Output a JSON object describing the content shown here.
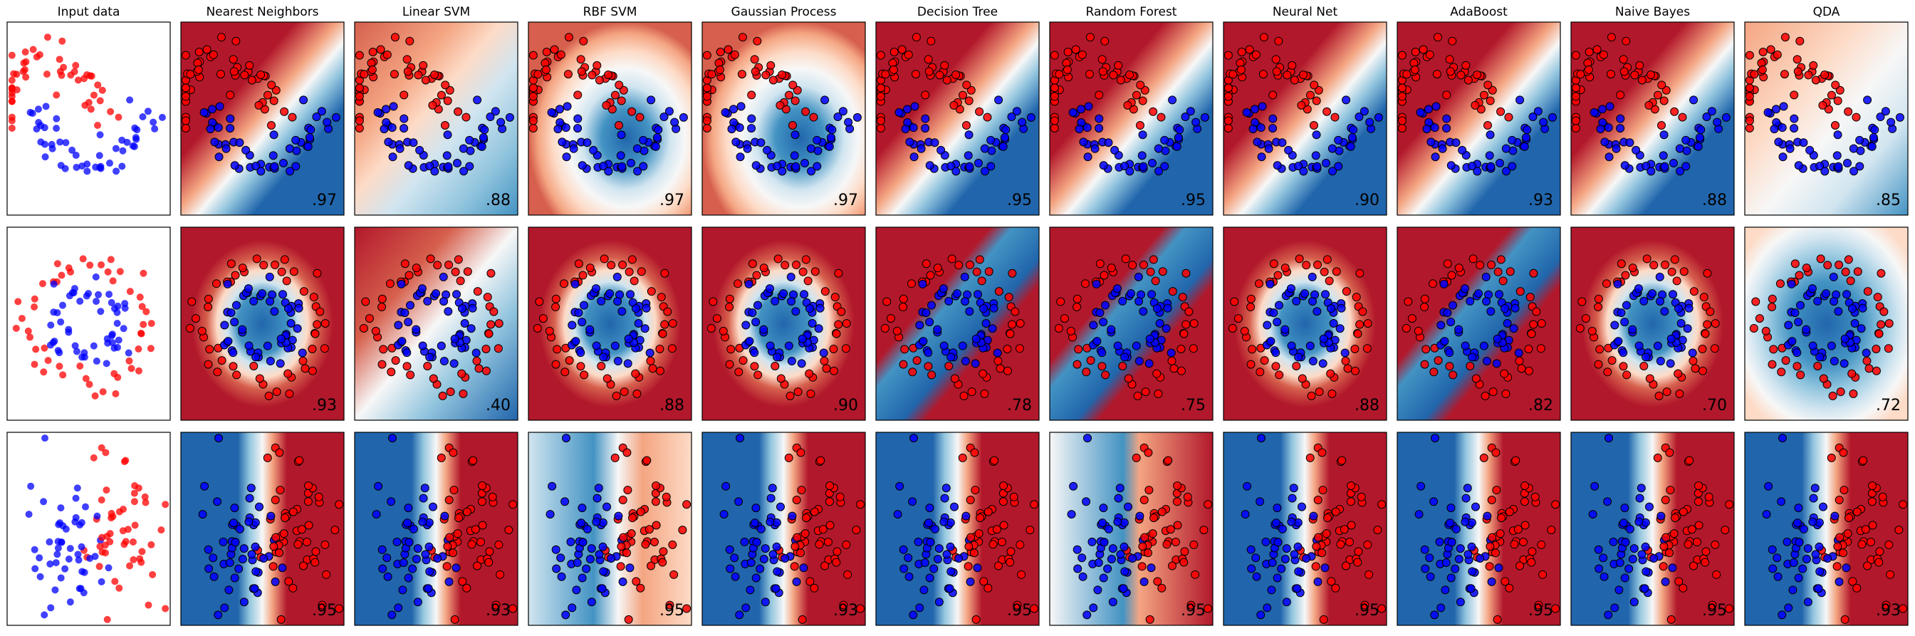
{
  "figure": {
    "description_hidden": "",
    "classifier_names": [
      "Input data",
      "Nearest Neighbors",
      "Linear SVM",
      "RBF SVM",
      "Gaussian Process",
      "Decision Tree",
      "Random Forest",
      "Neural Net",
      "AdaBoost",
      "Naive Bayes",
      "QDA"
    ]
  },
  "colors": {
    "red_point": "#ff0000",
    "blue_point": "#0000ff",
    "frame": "#000000",
    "cmap_red_dark": "#b2182b",
    "cmap_red_mid": "#ef8a62",
    "cmap_red_light": "#fddbc7",
    "cmap_neutral": "#f7f7f7",
    "cmap_blue_light": "#d1e5f0",
    "cmap_blue_mid": "#67a9cf",
    "cmap_blue_dark": "#2166ac"
  },
  "chart_data": {
    "type": "scatter",
    "title": "",
    "grid": false,
    "legend": "none",
    "columns": [
      "Input data",
      "Nearest Neighbors",
      "Linear SVM",
      "RBF SVM",
      "Gaussian Process",
      "Decision Tree",
      "Random Forest",
      "Neural Net",
      "AdaBoost",
      "Naive Bayes",
      "QDA"
    ],
    "rows": [
      {
        "dataset": "moons",
        "scores": [
          ".97",
          ".88",
          ".97",
          ".97",
          ".95",
          ".95",
          ".90",
          ".93",
          ".88",
          ".85"
        ]
      },
      {
        "dataset": "circles",
        "scores": [
          ".93",
          ".40",
          ".88",
          ".90",
          ".78",
          ".75",
          ".88",
          ".82",
          ".70",
          ".72"
        ]
      },
      {
        "dataset": "linearly separable",
        "scores": [
          ".95",
          ".93",
          ".95",
          ".93",
          ".95",
          ".95",
          ".95",
          ".95",
          ".95",
          ".93"
        ]
      }
    ]
  }
}
